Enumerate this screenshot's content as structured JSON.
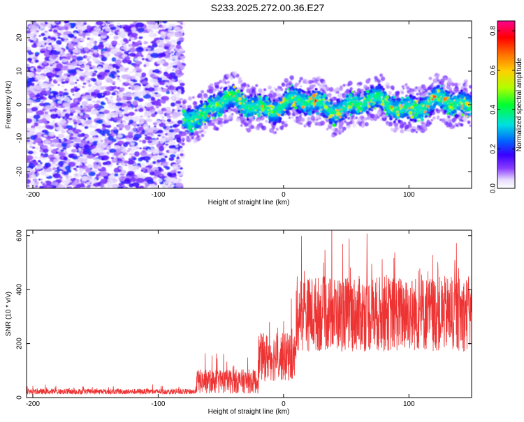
{
  "figure": {
    "title": "S233.2025.272.00.36.E27"
  },
  "chart_data": [
    {
      "type": "heatmap",
      "xlabel": "Height of straight line (km)",
      "ylabel": "Frequency (Hz)",
      "xlim": [
        -205,
        150
      ],
      "ylim": [
        -25,
        25
      ],
      "xticks": [
        -200,
        -100,
        0,
        100
      ],
      "yticks": [
        -20,
        -10,
        0,
        10,
        20
      ],
      "colorbar": {
        "label": "Normalized spectral amplitude",
        "range": [
          0.0,
          0.85
        ],
        "ticks": [
          "0.0",
          "0.2",
          "0.4",
          "0.6",
          "0.8"
        ]
      },
      "regions": [
        {
          "name": "noise",
          "x_range": [
            -205,
            -75
          ],
          "y_range": [
            -25,
            25
          ],
          "amplitude": "low"
        },
        {
          "name": "signal-band",
          "x_range": [
            -80,
            150
          ],
          "center_freq_hz": 0,
          "half_width_hz": 4,
          "amplitude": "high"
        }
      ]
    },
    {
      "type": "line",
      "xlabel": "Height of straight line (km)",
      "ylabel": "SNR (10 * v/v)",
      "xlim": [
        -205,
        150
      ],
      "ylim": [
        0,
        620
      ],
      "xticks": [
        -200,
        -100,
        0,
        100
      ],
      "yticks": [
        0,
        200,
        400,
        600
      ],
      "color": "#ee3333",
      "series": [
        {
          "name": "SNR",
          "segments": [
            {
              "x_range": [
                -205,
                -70
              ],
              "mean": 22,
              "spread": 20
            },
            {
              "x_range": [
                -70,
                -20
              ],
              "mean": 60,
              "spread": 90
            },
            {
              "x_range": [
                -20,
                10
              ],
              "mean": 150,
              "spread": 180
            },
            {
              "x_range": [
                10,
                150
              ],
              "mean": 310,
              "spread": 280
            }
          ]
        }
      ]
    }
  ]
}
